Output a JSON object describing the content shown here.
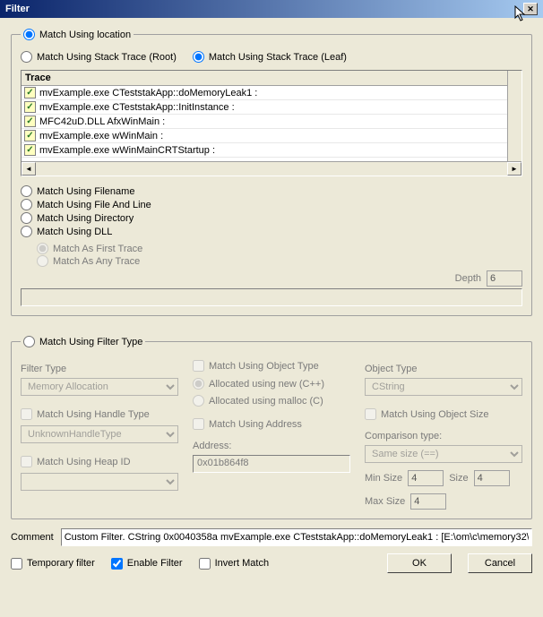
{
  "window": {
    "title": "Filter"
  },
  "groups": {
    "location": {
      "legend": "Match Using location",
      "stack_root": "Match Using Stack Trace (Root)",
      "stack_leaf": "Match Using Stack Trace (Leaf)",
      "trace_header": "Trace",
      "trace_items": [
        "mvExample.exe CTeststakApp::doMemoryLeak1 :",
        "mvExample.exe CTeststakApp::InitInstance :",
        "MFC42uD.DLL AfxWinMain :",
        "mvExample.exe wWinMain :",
        "mvExample.exe wWinMainCRTStartup :"
      ],
      "filename": "Match Using Filename",
      "file_and_line": "Match Using File And Line",
      "directory": "Match Using Directory",
      "dll": "Match Using DLL",
      "as_first_trace": "Match As First Trace",
      "as_any_trace": "Match As Any Trace",
      "depth_label": "Depth",
      "depth_value": "6"
    },
    "filter_type": {
      "legend": "Match Using Filter Type",
      "ft_label": "Filter Type",
      "ft_value": "Memory Allocation",
      "handle_type_chk": "Match Using Handle Type",
      "handle_type_value": "UnknownHandleType",
      "heap_id_chk": "Match Using Heap ID",
      "obj_type_chk": "Match Using Object Type",
      "alloc_new": "Allocated using new (C++)",
      "alloc_malloc": "Allocated using malloc (C)",
      "address_chk": "Match Using Address",
      "address_label": "Address:",
      "address_value": "0x01b864f8",
      "obj_type_label": "Object Type",
      "obj_type_value": "CString",
      "obj_size_chk": "Match Using Object Size",
      "cmp_label": "Comparison type:",
      "cmp_value": "Same size (==)",
      "min_size_label": "Min Size",
      "min_size_value": "4",
      "size_label": "Size",
      "size_value": "4",
      "max_size_label": "Max Size",
      "max_size_value": "4"
    }
  },
  "comment": {
    "label": "Comment",
    "value": "Custom Filter. CString 0x0040358a mvExample.exe CTeststakApp::doMemoryLeak1 : [E:\\om\\c\\memory32\\m"
  },
  "bottom": {
    "temporary": "Temporary filter",
    "enable": "Enable Filter",
    "invert": "Invert Match",
    "ok": "OK",
    "cancel": "Cancel"
  }
}
